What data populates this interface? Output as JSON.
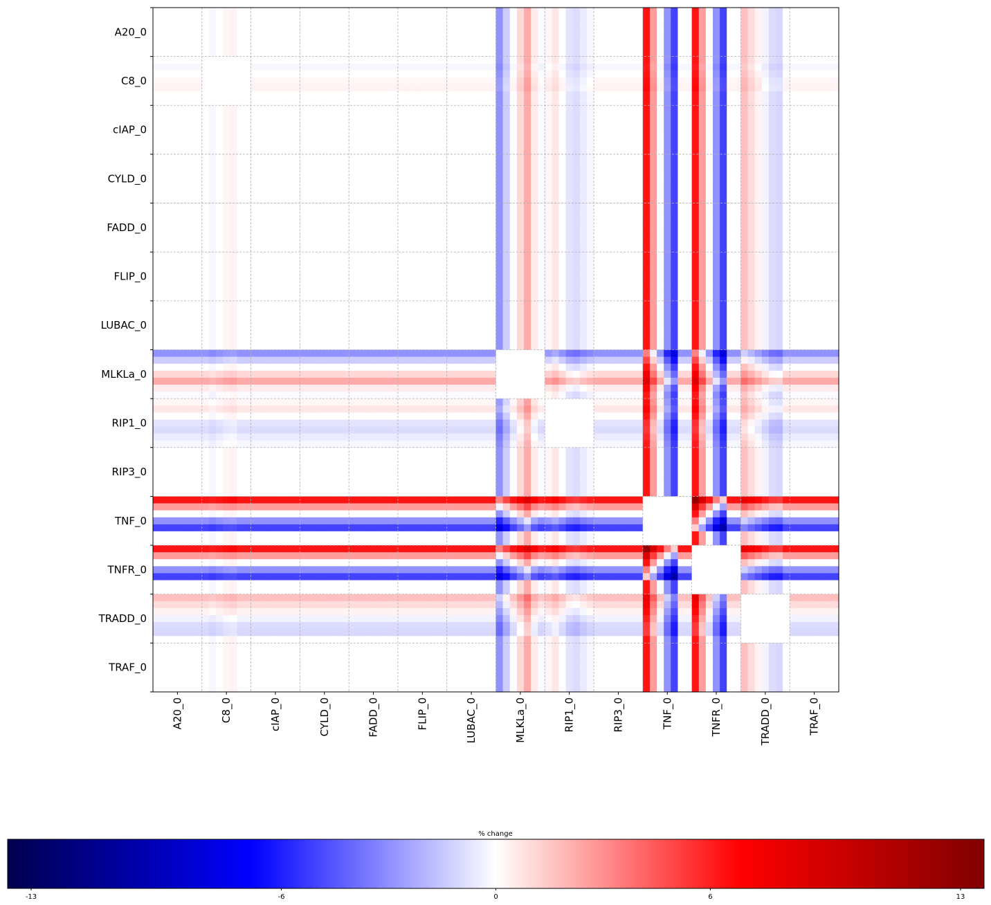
{
  "chart_data": {
    "type": "heatmap",
    "variables": [
      "A20_0",
      "C8_0",
      "cIAP_0",
      "CYLD_0",
      "FADD_0",
      "FLIP_0",
      "LUBAC_0",
      "MLKLa_0",
      "RIP1_0",
      "RIP3_0",
      "TNF_0",
      "TNFR_0",
      "TRADD_0",
      "TRAF_0"
    ],
    "row_labels": [
      "A20_0",
      "C8_0",
      "cIAP_0",
      "CYLD_0",
      "FADD_0",
      "FLIP_0",
      "LUBAC_0",
      "MLKLa_0",
      "RIP1_0",
      "RIP3_0",
      "TNF_0",
      "TNFR_0",
      "TRADD_0",
      "TRAF_0"
    ],
    "column_labels": [
      "A20_0",
      "C8_0",
      "cIAP_0",
      "CYLD_0",
      "FADD_0",
      "FLIP_0",
      "LUBAC_0",
      "MLKLa_0",
      "RIP1_0",
      "RIP3_0",
      "TNF_0",
      "TNFR_0",
      "TRADD_0",
      "TRAF_0"
    ],
    "sub_resolution": 7,
    "profiles": {
      "A20_0": [
        0,
        0,
        0,
        0,
        0,
        0,
        0
      ],
      "C8_0": [
        0,
        -0.2,
        0,
        0.2,
        0.3,
        0,
        0
      ],
      "cIAP_0": [
        0,
        0,
        0,
        0,
        0,
        0,
        0
      ],
      "CYLD_0": [
        0,
        0,
        0,
        0,
        0,
        0,
        0
      ],
      "FADD_0": [
        0,
        0,
        0,
        0,
        0,
        0,
        0
      ],
      "FLIP_0": [
        0,
        0,
        0,
        0,
        0,
        0,
        0
      ],
      "LUBAC_0": [
        0,
        0,
        0,
        0,
        0,
        0,
        0
      ],
      "MLKLa_0": [
        -2.8,
        -1.3,
        0,
        1.0,
        2.2,
        0.5,
        -0.1
      ],
      "RIP1_0": [
        0.2,
        0.6,
        0.0,
        -0.7,
        -0.9,
        -0.5,
        -0.2
      ],
      "RIP3_0": [
        0,
        0,
        0,
        0,
        0,
        0,
        0
      ],
      "TNF_0": [
        6.0,
        2.5,
        0.0,
        -2.8,
        -4.8,
        0,
        0
      ],
      "TNFR_0": [
        6.0,
        2.5,
        0.0,
        -2.8,
        -4.8,
        0,
        0
      ],
      "TRADD_0": [
        1.6,
        0.9,
        0.3,
        -0.3,
        -0.9,
        -1.0,
        0
      ],
      "TRAF_0": [
        0,
        0,
        0,
        0,
        0,
        0,
        0
      ]
    },
    "vmin": -13,
    "vmax": 13,
    "colormap": "seismic",
    "diagonal_blocks": "no change (white)",
    "grid": true,
    "colorbar": {
      "label": "% change",
      "ticks": [
        -13,
        -6,
        0,
        6,
        13
      ],
      "tick_labels": [
        "-13",
        "-6",
        "0",
        "6",
        "13"
      ],
      "orientation": "horizontal",
      "placement": "bottom"
    }
  }
}
